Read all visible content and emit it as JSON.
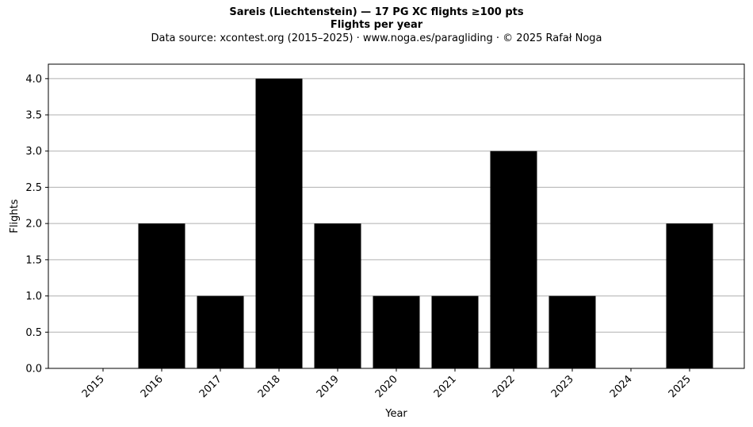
{
  "titles": {
    "line1": "Sareis (Liechtenstein)  —  17 PG XC flights ≥100 pts",
    "line2": "Flights per year",
    "line3": "Data source: xcontest.org (2015–2025)  ·  www.noga.es/paragliding  ·  © 2025 Rafał Noga"
  },
  "chart_data": {
    "type": "bar",
    "title": "Sareis (Liechtenstein)  —  17 PG XC flights ≥100 pts",
    "subtitle": "Flights per year",
    "xlabel": "Year",
    "ylabel": "Flights",
    "categories": [
      "2015",
      "2016",
      "2017",
      "2018",
      "2019",
      "2020",
      "2021",
      "2022",
      "2023",
      "2024",
      "2025"
    ],
    "values": [
      0,
      2,
      1,
      4,
      2,
      1,
      1,
      3,
      1,
      0,
      2
    ],
    "ylim": [
      0,
      4.2
    ],
    "yticks": [
      0.0,
      0.5,
      1.0,
      1.5,
      2.0,
      2.5,
      3.0,
      3.5,
      4.0
    ],
    "ytick_labels": [
      "0.0",
      "0.5",
      "1.0",
      "1.5",
      "2.0",
      "2.5",
      "3.0",
      "3.5",
      "4.0"
    ],
    "grid": "horizontal",
    "bar_color": "#000000",
    "grid_color": "#b0b0b0"
  }
}
